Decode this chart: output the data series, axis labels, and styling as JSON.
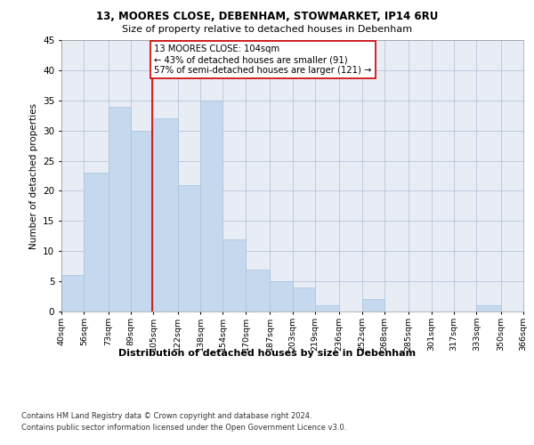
{
  "title1": "13, MOORES CLOSE, DEBENHAM, STOWMARKET, IP14 6RU",
  "title2": "Size of property relative to detached houses in Debenham",
  "xlabel": "Distribution of detached houses by size in Debenham",
  "ylabel": "Number of detached properties",
  "bar_color": "#c5d8ed",
  "bar_edgecolor": "#a8c4dc",
  "grid_color": "#b0bcd4",
  "background_color": "#e8edf5",
  "annotation_line_color": "#cc0000",
  "annotation_box_edgecolor": "#cc0000",
  "property_line_x": 104,
  "annotation_text": "13 MOORES CLOSE: 104sqm\n← 43% of detached houses are smaller (91)\n57% of semi-detached houses are larger (121) →",
  "footer1": "Contains HM Land Registry data © Crown copyright and database right 2024.",
  "footer2": "Contains public sector information licensed under the Open Government Licence v3.0.",
  "bin_edges": [
    40,
    56,
    73,
    89,
    105,
    122,
    138,
    154,
    170,
    187,
    203,
    219,
    236,
    252,
    268,
    285,
    301,
    317,
    333,
    350,
    366
  ],
  "bin_counts": [
    6,
    23,
    34,
    30,
    32,
    21,
    35,
    12,
    7,
    5,
    4,
    1,
    0,
    2,
    0,
    0,
    0,
    0,
    1,
    0
  ],
  "tick_labels": [
    "40sqm",
    "56sqm",
    "73sqm",
    "89sqm",
    "105sqm",
    "122sqm",
    "138sqm",
    "154sqm",
    "170sqm",
    "187sqm",
    "203sqm",
    "219sqm",
    "236sqm",
    "252sqm",
    "268sqm",
    "285sqm",
    "301sqm",
    "317sqm",
    "333sqm",
    "350sqm",
    "366sqm"
  ],
  "ylim": [
    0,
    45
  ],
  "yticks": [
    0,
    5,
    10,
    15,
    20,
    25,
    30,
    35,
    40,
    45
  ]
}
